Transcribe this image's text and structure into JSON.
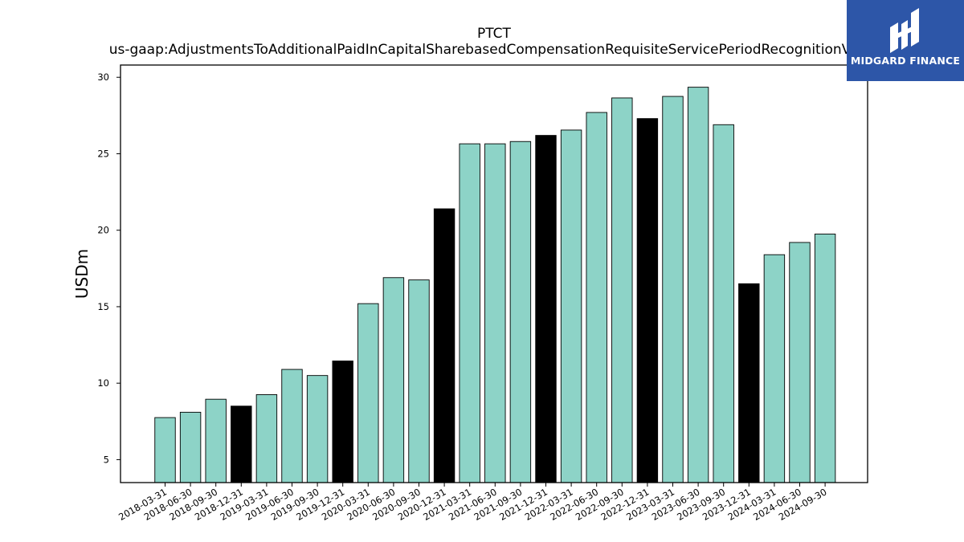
{
  "chart_data": {
    "type": "bar",
    "title": "PTCT",
    "subtitle": "us-gaap:AdjustmentsToAdditionalPaidInCapitalSharebasedCompensationRequisiteServicePeriodRecognitionValue",
    "xlabel": "",
    "ylabel": "USDm",
    "ylim": [
      3.5,
      30.8
    ],
    "yticks": [
      5,
      10,
      15,
      20,
      25,
      30
    ],
    "categories": [
      "2018-03-31",
      "2018-06-30",
      "2018-09-30",
      "2018-12-31",
      "2019-03-31",
      "2019-06-30",
      "2019-09-30",
      "2019-12-31",
      "2020-03-31",
      "2020-06-30",
      "2020-09-30",
      "2020-12-31",
      "2021-03-31",
      "2021-06-30",
      "2021-09-30",
      "2021-12-31",
      "2022-03-31",
      "2022-06-30",
      "2022-09-30",
      "2022-12-31",
      "2023-03-31",
      "2023-06-30",
      "2023-09-30",
      "2023-12-31",
      "2024-03-31",
      "2024-06-30",
      "2024-09-30"
    ],
    "values": [
      7.75,
      8.1,
      8.95,
      8.5,
      9.25,
      10.9,
      10.5,
      11.45,
      15.2,
      16.9,
      16.75,
      21.4,
      25.65,
      25.65,
      25.8,
      26.2,
      26.55,
      27.7,
      28.65,
      27.3,
      28.75,
      29.35,
      26.9,
      16.5,
      18.4,
      19.2,
      19.75
    ],
    "colors": {
      "quarter": "#8dd3c7",
      "year_end": "#000000",
      "edge": "#000000"
    },
    "grid": false
  },
  "logo": {
    "text": "MIDGARD FINANCE",
    "background": "#2d56a8"
  }
}
